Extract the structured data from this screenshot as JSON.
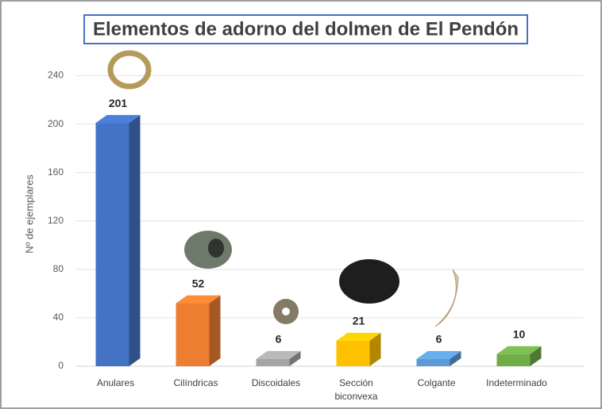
{
  "chart_data": {
    "type": "bar3d",
    "title": "Elementos de adorno del dolmen de El Pendón",
    "y_label": "Nº de ejemplares",
    "categories": [
      "Anulares",
      "Cilíndricas",
      "Discoidales",
      "Sección biconvexa",
      "Colgante",
      "Indeterminado"
    ],
    "values": [
      201,
      52,
      6,
      21,
      6,
      10
    ],
    "colors": [
      "#4472c4",
      "#ed7d31",
      "#a5a5a5",
      "#ffc000",
      "#5b9bd5",
      "#70ad47"
    ],
    "ylim": [
      0,
      260
    ],
    "yticks": [
      0,
      40,
      80,
      120,
      160,
      200,
      240
    ],
    "grid": true
  }
}
